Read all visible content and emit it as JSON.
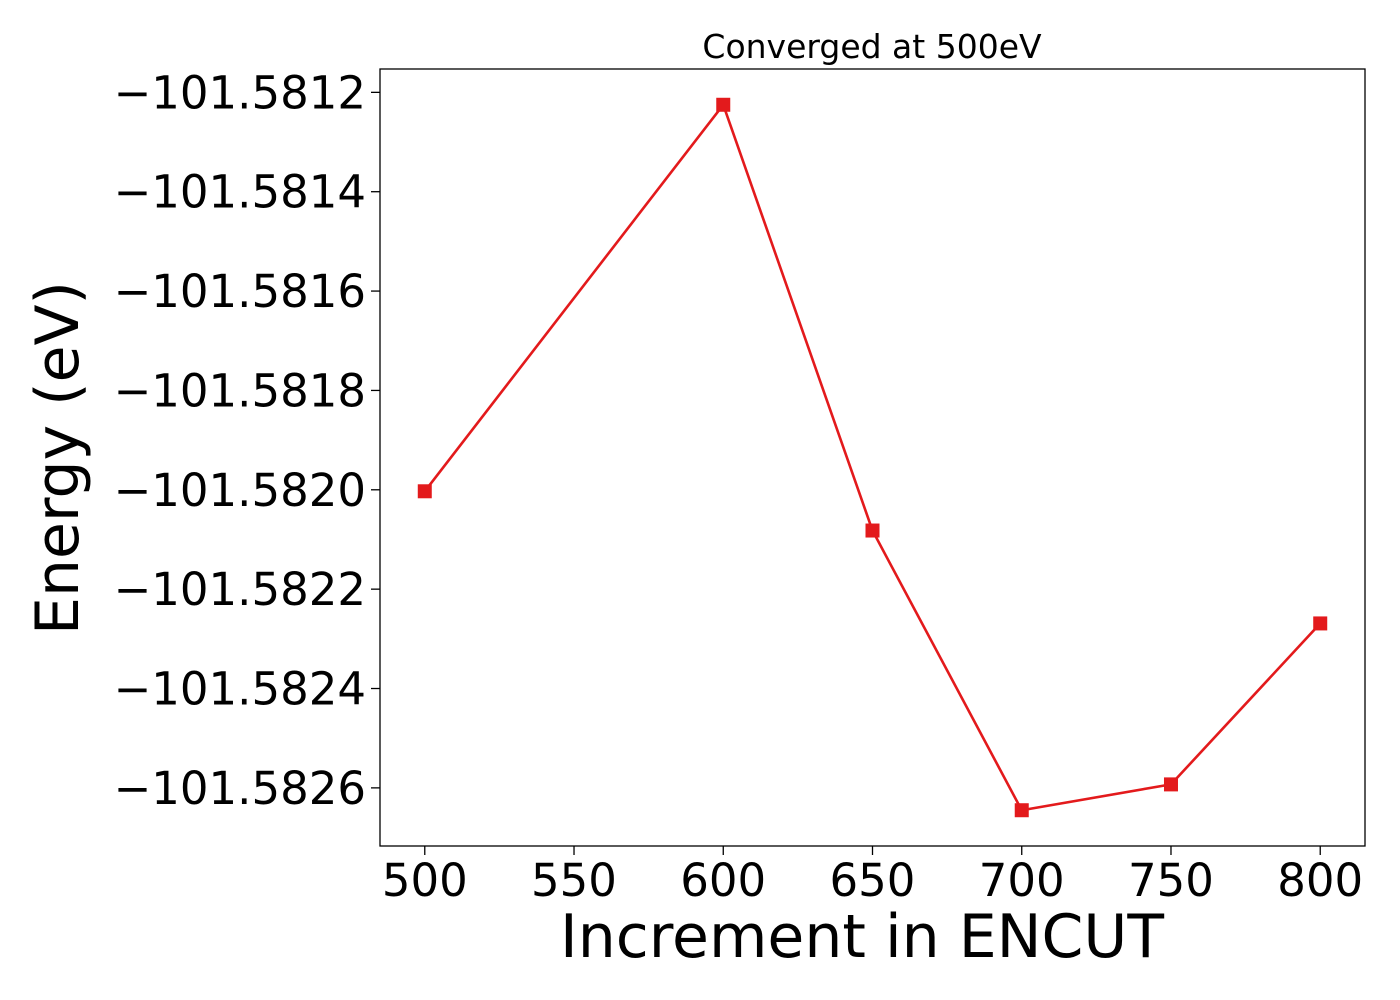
{
  "chart_data": {
    "type": "line",
    "title": "Converged at 500eV",
    "xlabel": "Increment in ENCUT",
    "ylabel": "Energy (eV)",
    "x": [
      500,
      600,
      650,
      700,
      750,
      800
    ],
    "series": [
      {
        "values": [
          -101.582003,
          -101.581225,
          -101.582082,
          -101.582645,
          -101.582593,
          -101.582269
        ],
        "color": "#e31a1c",
        "marker": "square"
      }
    ],
    "xticks": [
      500,
      550,
      600,
      650,
      700,
      750,
      800
    ],
    "xtick_labels": [
      "500",
      "550",
      "600",
      "650",
      "700",
      "750",
      "800"
    ],
    "yticks": [
      -101.5826,
      -101.5824,
      -101.5822,
      -101.582,
      -101.5818,
      -101.5816,
      -101.5814,
      -101.5812
    ],
    "ytick_labels": [
      "−101.5826",
      "−101.5824",
      "−101.5822",
      "−101.5820",
      "−101.5818",
      "−101.5816",
      "−101.5814",
      "−101.5812"
    ],
    "xlim": [
      485,
      815
    ],
    "ylim": [
      -101.582717,
      -101.581153
    ],
    "grid": false,
    "legend": false
  }
}
